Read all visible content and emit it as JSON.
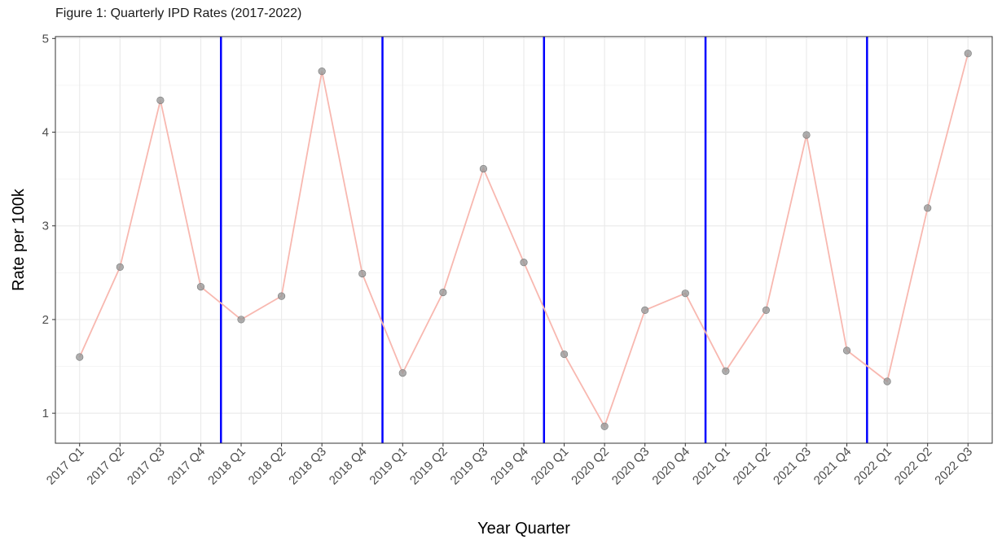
{
  "chart_data": {
    "type": "line",
    "title": "Figure 1: Quarterly IPD Rates (2017-2022)",
    "xlabel": "Year Quarter",
    "ylabel": "Rate per 100k",
    "ylim": [
      0.68,
      5.02
    ],
    "yticks": [
      1,
      2,
      3,
      4,
      5
    ],
    "grid": true,
    "legend": "none",
    "categories": [
      "2017 Q1",
      "2017 Q2",
      "2017 Q3",
      "2017 Q4",
      "2018 Q1",
      "2018 Q2",
      "2018 Q3",
      "2018 Q4",
      "2019 Q1",
      "2019 Q2",
      "2019 Q3",
      "2019 Q4",
      "2020 Q1",
      "2020 Q2",
      "2020 Q3",
      "2020 Q4",
      "2021 Q1",
      "2021 Q2",
      "2021 Q3",
      "2021 Q4",
      "2022 Q1",
      "2022 Q2",
      "2022 Q3"
    ],
    "series": [
      {
        "values": [
          1.6,
          2.56,
          4.34,
          2.35,
          2.0,
          2.25,
          4.65,
          2.49,
          1.43,
          2.29,
          3.61,
          2.61,
          1.63,
          0.86,
          2.1,
          2.28,
          1.45,
          2.1,
          3.97,
          1.67,
          1.34,
          3.19,
          4.84
        ]
      }
    ],
    "vertical_lines_between": [
      [
        "2017 Q4",
        "2018 Q1"
      ],
      [
        "2018 Q4",
        "2019 Q1"
      ],
      [
        "2019 Q4",
        "2020 Q1"
      ],
      [
        "2020 Q4",
        "2021 Q1"
      ],
      [
        "2021 Q4",
        "2022 Q1"
      ]
    ],
    "colors": {
      "line": "#f8b8b0",
      "point": "#999999",
      "point_stroke": "#7a7a7a",
      "vline": "#0000ff",
      "grid_major": "#ebebeb",
      "grid_minor": "#f5f5f5",
      "panel_border": "#333333"
    }
  }
}
